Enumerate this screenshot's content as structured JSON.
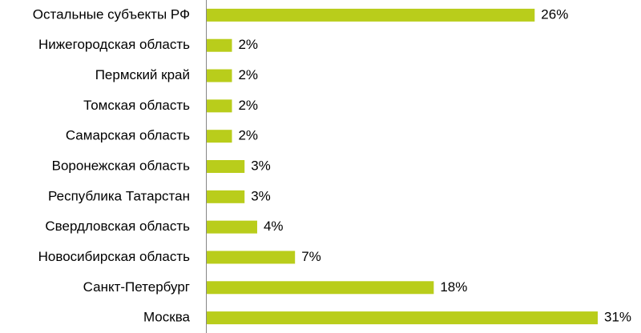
{
  "chart_data": {
    "type": "bar",
    "orientation": "horizontal",
    "categories": [
      "Остальные субъекты РФ",
      "Нижегородская область",
      "Пермский край",
      "Томская область",
      "Самарская область",
      "Воронежская область",
      "Республика Татарстан",
      "Свердловская область",
      "Новосибирская область",
      "Санкт-Петербург",
      "Москва"
    ],
    "values": [
      26,
      2,
      2,
      2,
      2,
      3,
      3,
      4,
      7,
      18,
      31
    ],
    "value_labels": [
      "26%",
      "2%",
      "2%",
      "2%",
      "2%",
      "3%",
      "3%",
      "4%",
      "7%",
      "18%",
      "31%"
    ],
    "color": "#b9cd1b"
  }
}
